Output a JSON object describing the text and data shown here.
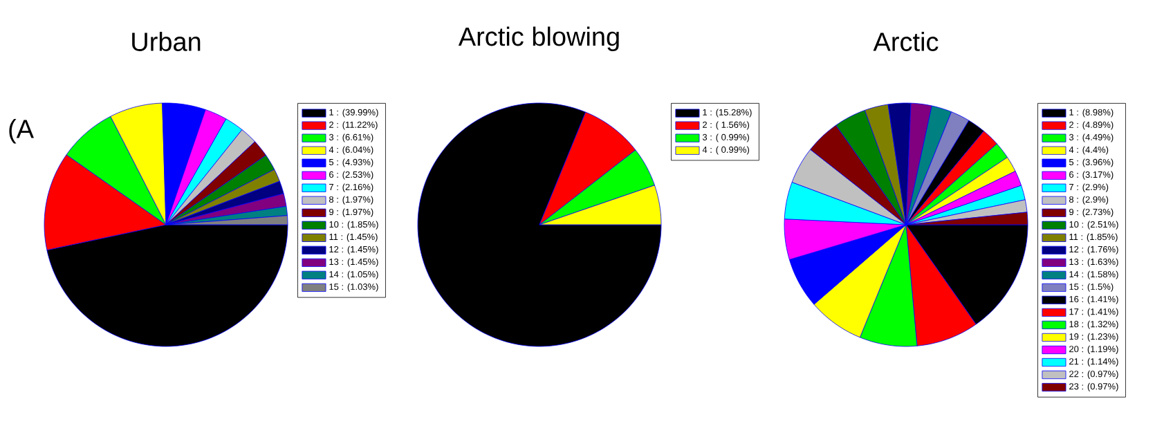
{
  "chart_data": [
    {
      "type": "pie",
      "title": "Urban",
      "annotations": [
        "(A"
      ],
      "legend": "right",
      "categories": [
        "1 : (39.99%)",
        "2 : (11.22%)",
        "3 : (6.61%)",
        "4 : (6.04%)",
        "5 : (4.93%)",
        "6 : (2.53%)",
        "7 : (2.16%)",
        "8 : (1.97%)",
        "9 : (1.97%)",
        "10 : (1.85%)",
        "11 : (1.45%)",
        "12 : (1.45%)",
        "13 : (1.45%)",
        "14 : (1.05%)",
        "15 : (1.03%)"
      ],
      "values": [
        39.99,
        11.22,
        6.61,
        6.04,
        4.93,
        2.53,
        2.16,
        1.97,
        1.97,
        1.85,
        1.45,
        1.45,
        1.45,
        1.05,
        1.03
      ],
      "colors": [
        "#000000",
        "#ff0000",
        "#00ff00",
        "#ffff00",
        "#0000ff",
        "#ff00ff",
        "#00ffff",
        "#c0c0c0",
        "#800000",
        "#008000",
        "#808000",
        "#000080",
        "#800080",
        "#008080",
        "#808080"
      ]
    },
    {
      "type": "pie",
      "title": "Arctic blowing",
      "legend": "right",
      "categories": [
        "1 : (15.28%)",
        "2 : ( 1.56%)",
        "3 : ( 0.99%)",
        "4 : ( 0.99%)"
      ],
      "values": [
        15.28,
        1.56,
        0.99,
        0.99
      ],
      "colors": [
        "#000000",
        "#ff0000",
        "#00ff00",
        "#ffff00"
      ]
    },
    {
      "type": "pie",
      "title": "Arctic",
      "legend": "right",
      "categories": [
        "1 : (8.98%)",
        "2 : (4.89%)",
        "3 : (4.49%)",
        "4 : (4.4%)",
        "5 : (3.96%)",
        "6 : (3.17%)",
        "7 : (2.9%)",
        "8 : (2.9%)",
        "9 : (2.73%)",
        "10 : (2.51%)",
        "11 : (1.85%)",
        "12 : (1.76%)",
        "13 : (1.63%)",
        "14 : (1.58%)",
        "15 : (1.5%)",
        "16 : (1.41%)",
        "17 : (1.41%)",
        "18 : (1.32%)",
        "19 : (1.23%)",
        "20 : (1.19%)",
        "21 : (1.14%)",
        "22 : (0.97%)",
        "23 : (0.97%)"
      ],
      "values": [
        8.98,
        4.89,
        4.49,
        4.4,
        3.96,
        3.17,
        2.9,
        2.9,
        2.73,
        2.51,
        1.85,
        1.76,
        1.63,
        1.58,
        1.5,
        1.41,
        1.41,
        1.32,
        1.23,
        1.19,
        1.14,
        0.97,
        0.97
      ],
      "colors": [
        "#000000",
        "#ff0000",
        "#00ff00",
        "#ffff00",
        "#0000ff",
        "#ff00ff",
        "#00ffff",
        "#c0c0c0",
        "#800000",
        "#008000",
        "#808000",
        "#000080",
        "#800080",
        "#008080",
        "#8080c0",
        "#000000",
        "#ff0000",
        "#00ff00",
        "#ffff00",
        "#ff00ff",
        "#00ffff",
        "#c0c0c0",
        "#800000"
      ]
    }
  ]
}
